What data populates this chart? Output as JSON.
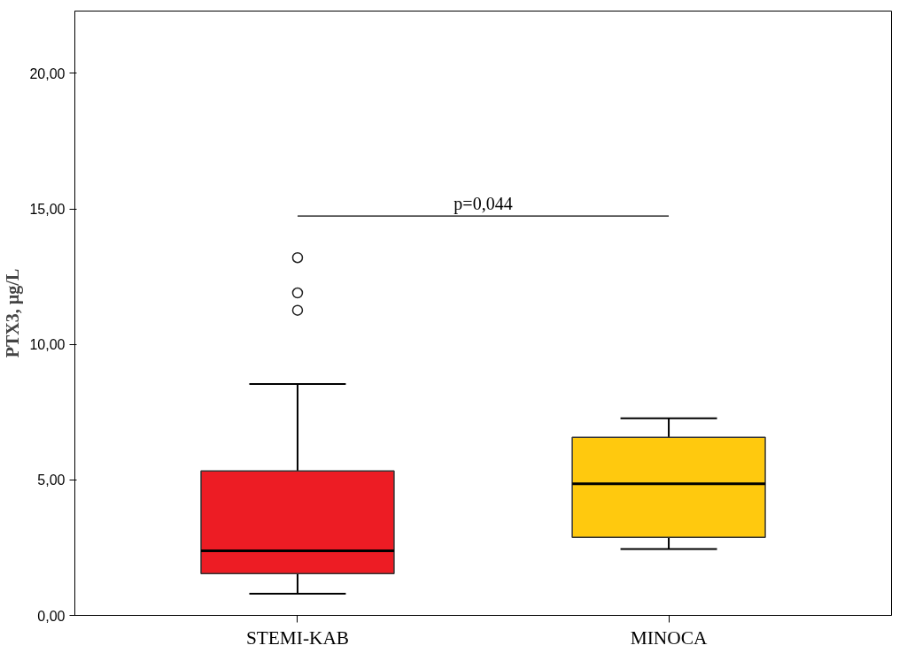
{
  "chart_data": {
    "type": "box",
    "ylabel": "PTX3, µg/L",
    "categories": [
      "STEMI-KAB",
      "MINOCA"
    ],
    "colors": [
      "#ed1c24",
      "#ffc90e"
    ],
    "boxes": [
      {
        "low": 0.8,
        "q1": 1.54,
        "median": 2.38,
        "q3": 5.33,
        "high": 8.54,
        "outliers": [
          13.2,
          11.9,
          11.26
        ]
      },
      {
        "low": 2.45,
        "q1": 2.88,
        "median": 4.86,
        "q3": 6.57,
        "high": 7.27
      }
    ],
    "ylim": [
      0,
      22.3
    ],
    "yticks": [
      {
        "value": 0,
        "label": "0,00"
      },
      {
        "value": 5,
        "label": "5,00"
      },
      {
        "value": 10,
        "label": "10,00"
      },
      {
        "value": 15,
        "label": "15,00"
      },
      {
        "value": 20,
        "label": "20,00"
      }
    ],
    "annotations": [
      "p=0,044"
    ],
    "grid": false
  }
}
